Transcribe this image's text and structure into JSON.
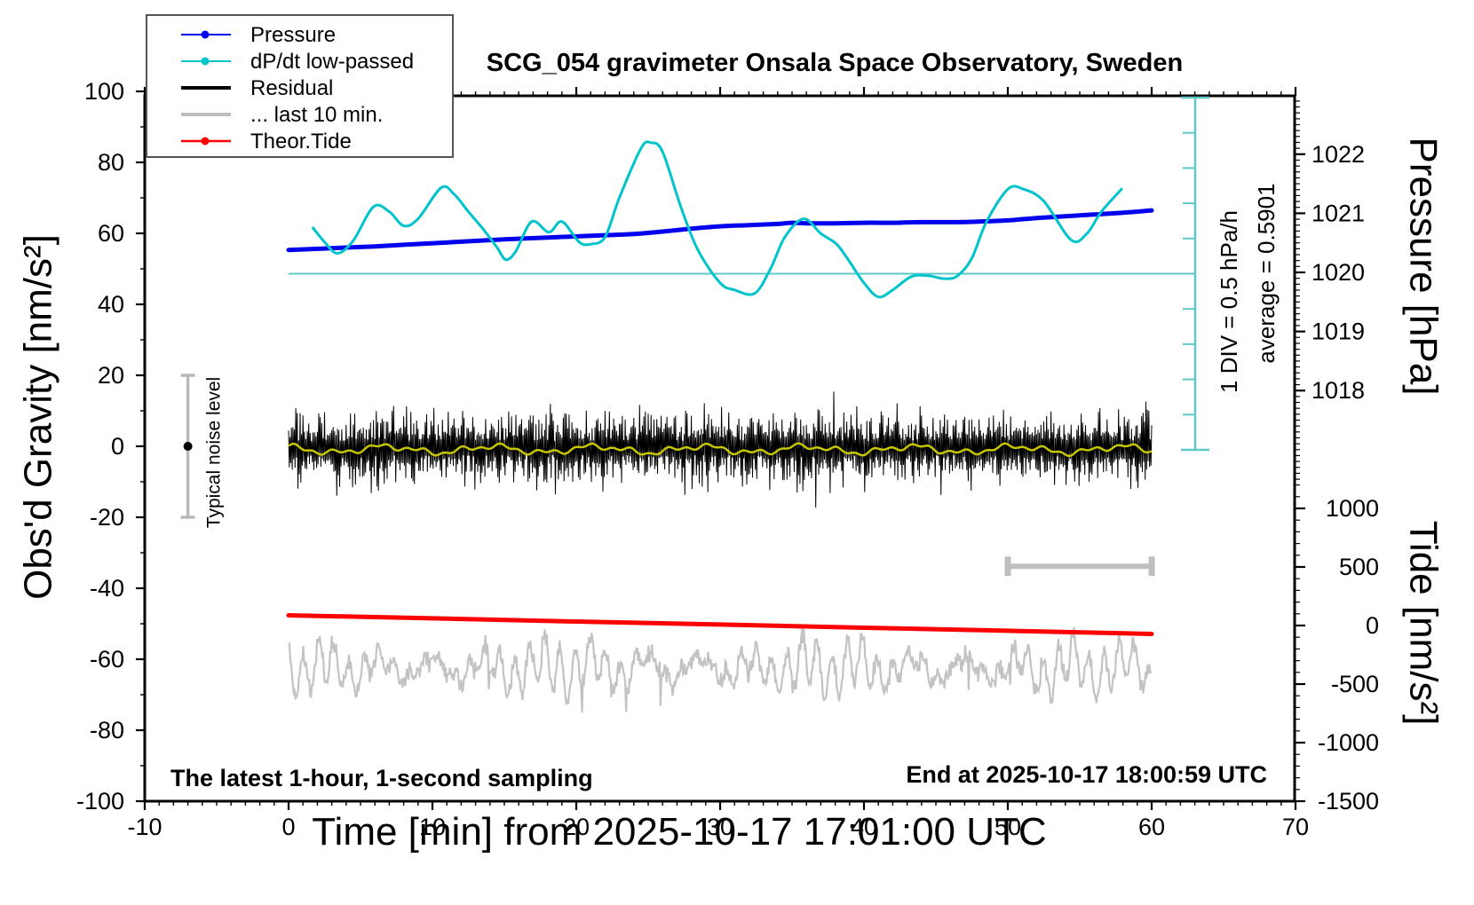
{
  "title": "SCG_054 gravimeter Onsala Space Observatory, Sweden",
  "annotations": {
    "div_scale": "1 DIV = 0.5 hPa/h",
    "average": "average = 0.5901",
    "noise_level": "Typical noise level",
    "sampling": "The latest 1-hour, 1-second sampling",
    "end_time": "End at 2025-10-17 18:00:59 UTC"
  },
  "legend": {
    "items": [
      {
        "label": "Pressure",
        "color": "#0000ee",
        "marker": true,
        "width": 2
      },
      {
        "label": "dP/dt low-passed",
        "color": "#00c4cb",
        "marker": true,
        "width": 2
      },
      {
        "label": "Residual",
        "color": "#000000",
        "marker": false,
        "width": 4
      },
      {
        "label": "... last 10 min.",
        "color": "#bdbdbd",
        "marker": false,
        "width": 4
      },
      {
        "label": "Theor.Tide",
        "color": "#ff0000",
        "marker": true,
        "width": 2.5
      }
    ]
  },
  "axes": {
    "x": {
      "label": "Time [min] from 2025-10-17 17:01:00 UTC",
      "range": [
        -10,
        70
      ],
      "major_ticks": [
        -10,
        0,
        10,
        20,
        30,
        40,
        50,
        60,
        70
      ],
      "minor_step": 1
    },
    "gravity": {
      "label": "Obs'd Gravity [nm/s²]",
      "range": [
        -100,
        100
      ],
      "major_ticks": [
        -100,
        -80,
        -60,
        -40,
        -20,
        0,
        20,
        40,
        60,
        80,
        100
      ],
      "minor_step": 10
    },
    "pressure": {
      "label": "Pressure [hPa]",
      "major_ticks": [
        1018,
        1019,
        1020,
        1021,
        1022
      ],
      "minor_step": 0.1
    },
    "tide": {
      "label": "Tide [nm/s²]",
      "major_ticks": [
        -1500,
        -1000,
        -500,
        0,
        500,
        1000
      ],
      "minor_step": 100
    },
    "dpdt": {
      "divisions": 10,
      "div_value_hpa_per_h": 0.5,
      "average_hpa_per_h": 0.5901
    }
  },
  "chart_data": {
    "type": "line",
    "x_unit": "minutes from 2025-10-17 17:01:00 UTC",
    "series": [
      {
        "name": "Pressure",
        "axis": "pressure",
        "unit": "hPa",
        "color": "#0000ee",
        "stroke": 5,
        "render": "smooth",
        "points": [
          [
            0,
            1020.38
          ],
          [
            3,
            1020.41
          ],
          [
            6,
            1020.44
          ],
          [
            9,
            1020.48
          ],
          [
            12,
            1020.52
          ],
          [
            15,
            1020.56
          ],
          [
            18,
            1020.59
          ],
          [
            21,
            1020.62
          ],
          [
            24,
            1020.65
          ],
          [
            26,
            1020.69
          ],
          [
            28,
            1020.74
          ],
          [
            30,
            1020.78
          ],
          [
            32,
            1020.8
          ],
          [
            34,
            1020.82
          ],
          [
            35,
            1020.84
          ],
          [
            36,
            1020.83
          ],
          [
            38,
            1020.83
          ],
          [
            40,
            1020.84
          ],
          [
            42,
            1020.84
          ],
          [
            44,
            1020.85
          ],
          [
            46,
            1020.85
          ],
          [
            48,
            1020.86
          ],
          [
            50,
            1020.88
          ],
          [
            52,
            1020.92
          ],
          [
            54,
            1020.95
          ],
          [
            56,
            1020.98
          ],
          [
            58,
            1021.01
          ],
          [
            60,
            1021.05
          ]
        ]
      },
      {
        "name": "dP/dt low-passed",
        "axis": "dpdt",
        "unit": "hPa/h",
        "color": "#00c4cb",
        "stroke": 3,
        "render": "smooth",
        "points": [
          [
            1.7,
            0.65
          ],
          [
            2.5,
            0.45
          ],
          [
            3.4,
            0.29
          ],
          [
            4.5,
            0.47
          ],
          [
            5.9,
            0.95
          ],
          [
            7,
            0.88
          ],
          [
            8,
            0.68
          ],
          [
            9,
            0.78
          ],
          [
            10.6,
            1.22
          ],
          [
            11.5,
            1.13
          ],
          [
            12.5,
            0.88
          ],
          [
            13.5,
            0.64
          ],
          [
            14.5,
            0.37
          ],
          [
            15.1,
            0.2
          ],
          [
            15.8,
            0.32
          ],
          [
            16.9,
            0.74
          ],
          [
            18.1,
            0.59
          ],
          [
            19,
            0.74
          ],
          [
            20.2,
            0.45
          ],
          [
            21,
            0.42
          ],
          [
            22,
            0.52
          ],
          [
            23,
            1.08
          ],
          [
            24.5,
            1.78
          ],
          [
            25.2,
            1.86
          ],
          [
            26,
            1.73
          ],
          [
            27.3,
            0.93
          ],
          [
            28.5,
            0.32
          ],
          [
            30,
            -0.13
          ],
          [
            31,
            -0.23
          ],
          [
            32.4,
            -0.28
          ],
          [
            33.5,
            0.07
          ],
          [
            34.5,
            0.52
          ],
          [
            35.8,
            0.78
          ],
          [
            37,
            0.57
          ],
          [
            38.1,
            0.42
          ],
          [
            39,
            0.17
          ],
          [
            40,
            -0.13
          ],
          [
            41,
            -0.33
          ],
          [
            42,
            -0.23
          ],
          [
            43.3,
            -0.04
          ],
          [
            44.5,
            -0.03
          ],
          [
            45.6,
            -0.07
          ],
          [
            46.5,
            -0.03
          ],
          [
            47.5,
            0.22
          ],
          [
            48.5,
            0.73
          ],
          [
            50,
            1.2
          ],
          [
            51.1,
            1.2
          ],
          [
            52.5,
            1.03
          ],
          [
            54.4,
            0.48
          ],
          [
            55.5,
            0.57
          ],
          [
            56.5,
            0.88
          ],
          [
            57.9,
            1.2
          ]
        ]
      },
      {
        "name": "Theor.Tide",
        "axis": "tide",
        "unit": "nm/s²",
        "color": "#ff0000",
        "stroke": 5,
        "render": "line",
        "points": [
          [
            0,
            87
          ],
          [
            10,
            61
          ],
          [
            20,
            34
          ],
          [
            30,
            8
          ],
          [
            40,
            -19
          ],
          [
            50,
            -45
          ],
          [
            60,
            -72
          ]
        ]
      },
      {
        "name": "Residual",
        "axis": "gravity",
        "unit": "nm/s²",
        "color": "#000000",
        "stroke": 1,
        "render": "band",
        "center": -0.5,
        "typical_amplitude": 8,
        "max_amplitude": 20,
        "t_range": [
          0,
          60
        ]
      },
      {
        "name": "Residual low-passed",
        "axis": "gravity",
        "unit": "nm/s²",
        "color": "#c6c600",
        "stroke": 2.5,
        "render": "lowpass",
        "center": -0.9,
        "amplitude": 1.6,
        "t_range": [
          0,
          60
        ]
      },
      {
        "name": "... last 10 min.",
        "axis": "gravity",
        "unit": "nm/s² (offset view)",
        "color": "#c3c3c3",
        "stroke": 2.2,
        "render": "wiggle",
        "center": -62.5,
        "typical_amplitude": 7,
        "value_range": [
          -76,
          -51
        ],
        "t_range": [
          0,
          60
        ]
      }
    ],
    "extras": {
      "dpdt_zero_line": {
        "axis": "dpdt",
        "value": 0,
        "t_range": [
          0,
          63
        ]
      },
      "noise_bar": {
        "t": -7,
        "gravity_center": 0,
        "gravity_halfspan": 20
      },
      "scalebar_last10": {
        "t_start": 50,
        "t_end": 60,
        "gravity_level": -33.8
      }
    }
  },
  "colors": {
    "frame": "#000000",
    "dpdt_axis": "#5fc9ca",
    "noise_bar": "#b9b9b9",
    "scalebar": "#bfbfbf",
    "legend_border": "#555555"
  }
}
